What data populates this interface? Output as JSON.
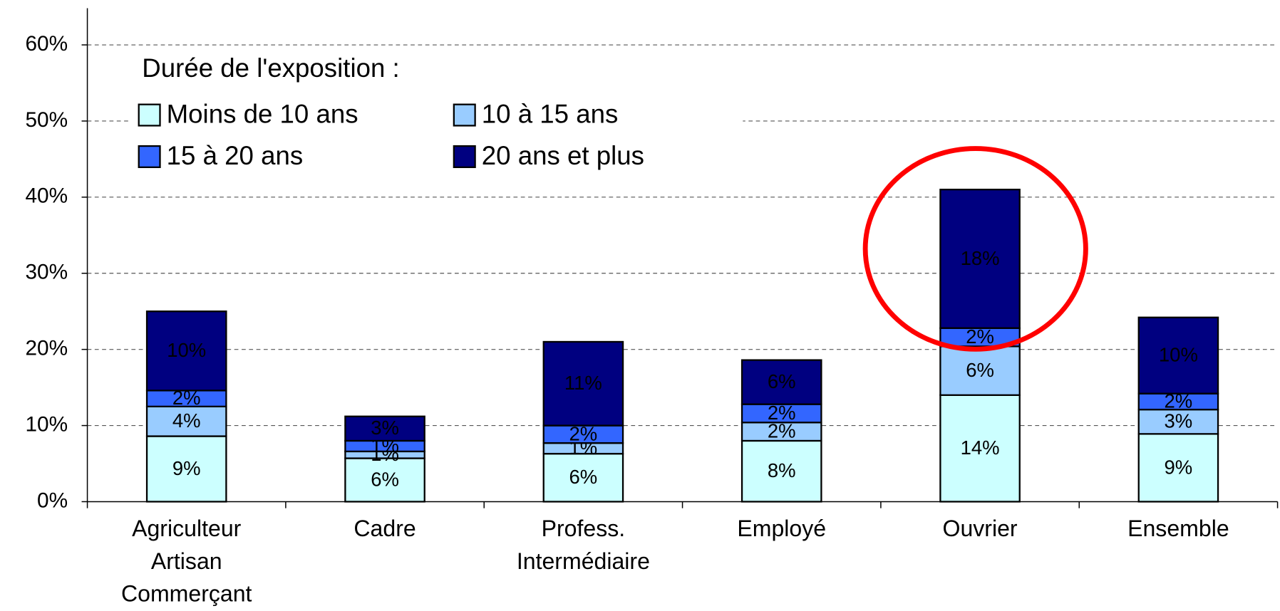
{
  "chart_data": {
    "type": "stacked_bar",
    "legend_title": "Durée de l'exposition :",
    "categories": [
      [
        "Agriculteur",
        "Artisan",
        "Commerçant"
      ],
      [
        "Cadre"
      ],
      [
        "Profess.",
        "Intermédiaire"
      ],
      [
        "Employé"
      ],
      [
        "Ouvrier"
      ],
      [
        "Ensemble"
      ]
    ],
    "series": [
      {
        "name": "Moins de 10 ans",
        "color": "#ccffff",
        "label_color": "#000000",
        "values": [
          8.6,
          5.7,
          6.3,
          8.0,
          14.0,
          8.9
        ],
        "value_labels": [
          "9%",
          "6%",
          "6%",
          "8%",
          "14%",
          "9%"
        ]
      },
      {
        "name": "10 à 15 ans",
        "color": "#99ccff",
        "label_color": "#000000",
        "values": [
          3.9,
          0.9,
          1.4,
          2.4,
          6.4,
          3.2
        ],
        "value_labels": [
          "4%",
          "1%",
          "1%",
          "2%",
          "6%",
          "3%"
        ]
      },
      {
        "name": "15 à 20 ans",
        "color": "#3366ff",
        "label_color": "#ffffff",
        "values": [
          2.1,
          1.4,
          2.3,
          2.4,
          2.4,
          2.1
        ],
        "value_labels": [
          "2%",
          "1%",
          "2%",
          "2%",
          "2%",
          "2%"
        ]
      },
      {
        "name": "20 ans et plus",
        "color": "#000080",
        "label_color": "#ffffcc",
        "values": [
          10.4,
          3.2,
          11.0,
          5.8,
          18.2,
          10.0
        ],
        "value_labels": [
          "10%",
          "3%",
          "11%",
          "6%",
          "18%",
          "10%"
        ]
      }
    ],
    "ylim": [
      0,
      60
    ],
    "yticks": [
      {
        "value": 0,
        "label": "0%"
      },
      {
        "value": 10,
        "label": "10%"
      },
      {
        "value": 20,
        "label": "20%"
      },
      {
        "value": 30,
        "label": "30%"
      },
      {
        "value": 40,
        "label": "40%"
      },
      {
        "value": 50,
        "label": "50%"
      },
      {
        "value": 60,
        "label": "60%"
      }
    ],
    "grid": true
  }
}
